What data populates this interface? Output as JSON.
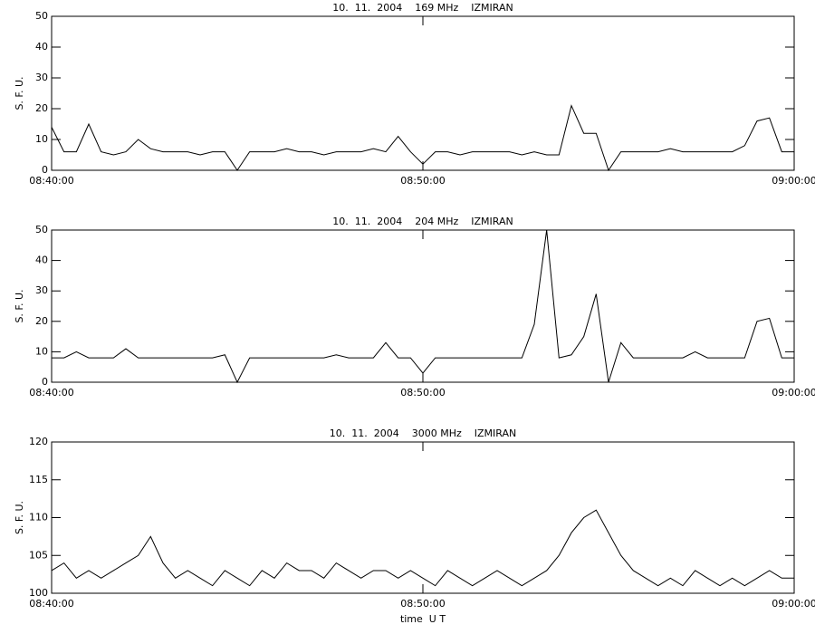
{
  "chart_data": [
    {
      "type": "line",
      "title": "10.  11.  2004    169 MHz    IZMIRAN",
      "y_label": "S. F. U.",
      "x": [
        "08:40:00",
        "08:40:20",
        "08:40:40",
        "08:41:00",
        "08:41:20",
        "08:41:40",
        "08:42:00",
        "08:42:20",
        "08:42:40",
        "08:43:00",
        "08:43:20",
        "08:43:40",
        "08:44:00",
        "08:44:20",
        "08:44:40",
        "08:45:00",
        "08:45:20",
        "08:45:40",
        "08:46:00",
        "08:46:20",
        "08:46:40",
        "08:47:00",
        "08:47:20",
        "08:47:40",
        "08:48:00",
        "08:48:20",
        "08:48:40",
        "08:49:00",
        "08:49:20",
        "08:49:40",
        "08:50:00",
        "08:50:20",
        "08:50:40",
        "08:51:00",
        "08:51:20",
        "08:51:40",
        "08:52:00",
        "08:52:20",
        "08:52:40",
        "08:53:00",
        "08:53:20",
        "08:53:40",
        "08:54:00",
        "08:54:20",
        "08:54:40",
        "08:55:00",
        "08:55:20",
        "08:55:40",
        "08:56:00",
        "08:56:20",
        "08:56:40",
        "08:57:00",
        "08:57:20",
        "08:57:40",
        "08:58:00",
        "08:58:20",
        "08:58:40",
        "08:59:00",
        "08:59:20",
        "08:59:40",
        "09:00:00"
      ],
      "values": [
        14,
        6,
        6,
        15,
        6,
        5,
        6,
        10,
        7,
        6,
        6,
        6,
        5,
        6,
        6,
        0,
        6,
        6,
        6,
        7,
        6,
        6,
        5,
        6,
        6,
        6,
        7,
        6,
        11,
        6,
        2,
        6,
        6,
        5,
        6,
        6,
        6,
        6,
        5,
        6,
        5,
        5,
        21,
        12,
        12,
        0,
        6,
        6,
        6,
        6,
        7,
        6,
        6,
        6,
        6,
        6,
        8,
        16,
        17,
        6,
        6
      ],
      "color": "#000000",
      "xlim": [
        "08:40:00",
        "09:00:00"
      ],
      "xticks": [
        "08:40:00",
        "08:50:00",
        "09:00:00"
      ],
      "ylim": [
        0,
        50
      ],
      "yticks": [
        0,
        10,
        20,
        30,
        40,
        50
      ]
    },
    {
      "type": "line",
      "title": "10.  11.  2004    204 MHz    IZMIRAN",
      "y_label": "S. F. U.",
      "x": [
        "08:40:00",
        "08:40:20",
        "08:40:40",
        "08:41:00",
        "08:41:20",
        "08:41:40",
        "08:42:00",
        "08:42:20",
        "08:42:40",
        "08:43:00",
        "08:43:20",
        "08:43:40",
        "08:44:00",
        "08:44:20",
        "08:44:40",
        "08:45:00",
        "08:45:20",
        "08:45:40",
        "08:46:00",
        "08:46:20",
        "08:46:40",
        "08:47:00",
        "08:47:20",
        "08:47:40",
        "08:48:00",
        "08:48:20",
        "08:48:40",
        "08:49:00",
        "08:49:20",
        "08:49:40",
        "08:50:00",
        "08:50:20",
        "08:50:40",
        "08:51:00",
        "08:51:20",
        "08:51:40",
        "08:52:00",
        "08:52:20",
        "08:52:40",
        "08:53:00",
        "08:53:20",
        "08:53:40",
        "08:54:00",
        "08:54:20",
        "08:54:40",
        "08:55:00",
        "08:55:20",
        "08:55:40",
        "08:56:00",
        "08:56:20",
        "08:56:40",
        "08:57:00",
        "08:57:20",
        "08:57:40",
        "08:58:00",
        "08:58:20",
        "08:58:40",
        "08:59:00",
        "08:59:20",
        "08:59:40",
        "09:00:00"
      ],
      "values": [
        8,
        8,
        10,
        8,
        8,
        8,
        11,
        8,
        8,
        8,
        8,
        8,
        8,
        8,
        9,
        0,
        8,
        8,
        8,
        8,
        8,
        8,
        8,
        9,
        8,
        8,
        8,
        13,
        8,
        8,
        3,
        8,
        8,
        8,
        8,
        8,
        8,
        8,
        8,
        19,
        50,
        8,
        9,
        15,
        29,
        0,
        13,
        8,
        8,
        8,
        8,
        8,
        10,
        8,
        8,
        8,
        8,
        20,
        21,
        8,
        8
      ],
      "color": "#000000",
      "xlim": [
        "08:40:00",
        "09:00:00"
      ],
      "xticks": [
        "08:40:00",
        "08:50:00",
        "09:00:00"
      ],
      "ylim": [
        0,
        50
      ],
      "yticks": [
        0,
        10,
        20,
        30,
        40,
        50
      ]
    },
    {
      "type": "line",
      "title": "10.  11.  2004    3000 MHz    IZMIRAN",
      "y_label": "S. F. U.",
      "x_label": "time  U T",
      "x": [
        "08:40:00",
        "08:40:20",
        "08:40:40",
        "08:41:00",
        "08:41:20",
        "08:41:40",
        "08:42:00",
        "08:42:20",
        "08:42:40",
        "08:43:00",
        "08:43:20",
        "08:43:40",
        "08:44:00",
        "08:44:20",
        "08:44:40",
        "08:45:00",
        "08:45:20",
        "08:45:40",
        "08:46:00",
        "08:46:20",
        "08:46:40",
        "08:47:00",
        "08:47:20",
        "08:47:40",
        "08:48:00",
        "08:48:20",
        "08:48:40",
        "08:49:00",
        "08:49:20",
        "08:49:40",
        "08:50:00",
        "08:50:20",
        "08:50:40",
        "08:51:00",
        "08:51:20",
        "08:51:40",
        "08:52:00",
        "08:52:20",
        "08:52:40",
        "08:53:00",
        "08:53:20",
        "08:53:40",
        "08:54:00",
        "08:54:20",
        "08:54:40",
        "08:55:00",
        "08:55:20",
        "08:55:40",
        "08:56:00",
        "08:56:20",
        "08:56:40",
        "08:57:00",
        "08:57:20",
        "08:57:40",
        "08:58:00",
        "08:58:20",
        "08:58:40",
        "08:59:00",
        "08:59:20",
        "08:59:40",
        "09:00:00"
      ],
      "values": [
        103,
        104,
        102,
        103,
        102,
        103,
        104,
        105,
        107.5,
        104,
        102,
        103,
        102,
        101,
        103,
        102,
        101,
        103,
        102,
        104,
        103,
        103,
        102,
        104,
        103,
        102,
        103,
        103,
        102,
        103,
        102,
        101,
        103,
        102,
        101,
        102,
        103,
        102,
        101,
        102,
        103,
        105,
        108,
        110,
        111,
        108,
        105,
        103,
        102,
        101,
        102,
        101,
        103,
        102,
        101,
        102,
        101,
        102,
        103,
        102,
        102
      ],
      "color": "#000000",
      "xlim": [
        "08:40:00",
        "09:00:00"
      ],
      "xticks": [
        "08:40:00",
        "08:50:00",
        "09:00:00"
      ],
      "ylim": [
        100,
        120
      ],
      "yticks": [
        100,
        105,
        110,
        115,
        120
      ]
    }
  ]
}
